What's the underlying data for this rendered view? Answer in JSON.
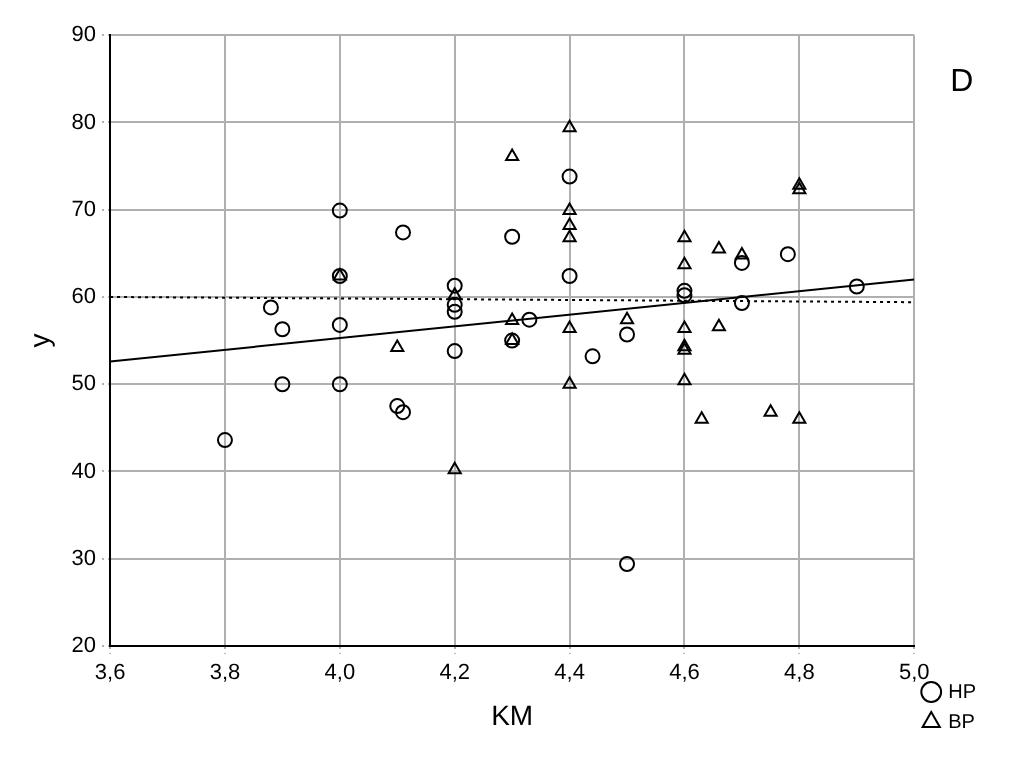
{
  "chart_data": {
    "type": "scatter",
    "xlabel": "KM",
    "ylabel": "y",
    "annotations": [
      "D"
    ],
    "xlim": [
      3.6,
      5.0
    ],
    "xticks": [
      {
        "value": 3.6,
        "label": "3,6"
      },
      {
        "value": 3.8,
        "label": "3,8"
      },
      {
        "value": 4.0,
        "label": "4,0"
      },
      {
        "value": 4.2,
        "label": "4,2"
      },
      {
        "value": 4.4,
        "label": "4,4"
      },
      {
        "value": 4.6,
        "label": "4,6"
      },
      {
        "value": 4.8,
        "label": "4,8"
      },
      {
        "value": 5.0,
        "label": "5,0"
      }
    ],
    "ylim": [
      20,
      90
    ],
    "yticks": [
      20,
      30,
      40,
      50,
      60,
      70,
      80,
      90
    ],
    "grid": true,
    "legend": "bottom right",
    "series": [
      {
        "name": "HP",
        "color": "#000000",
        "marker": "circle",
        "x": [
          3.8,
          3.88,
          3.9,
          3.9,
          4.0,
          4.0,
          4.0,
          4.0,
          4.1,
          4.11,
          4.11,
          4.2,
          4.2,
          4.2,
          4.2,
          4.3,
          4.3,
          4.33,
          4.4,
          4.4,
          4.44,
          4.5,
          4.5,
          4.6,
          4.6,
          4.7,
          4.7,
          4.78,
          4.9
        ],
        "values": [
          43.6,
          58.8,
          56.3,
          50,
          69.9,
          62.4,
          56.8,
          50,
          47.5,
          46.8,
          67.4,
          61.3,
          59.1,
          58.3,
          53.8,
          66.9,
          55.0,
          57.4,
          73.8,
          62.4,
          53.2,
          55.7,
          29.4,
          60.7,
          60.2,
          63.9,
          59.3,
          64.9,
          61.2
        ]
      },
      {
        "name": "BP",
        "color": "#000000",
        "marker": "triangle",
        "x": [
          4.0,
          4.1,
          4.2,
          4.2,
          4.3,
          4.3,
          4.3,
          4.4,
          4.4,
          4.4,
          4.4,
          4.4,
          4.4,
          4.5,
          4.6,
          4.6,
          4.6,
          4.6,
          4.6,
          4.6,
          4.63,
          4.66,
          4.66,
          4.7,
          4.75,
          4.8,
          4.8,
          4.8
        ],
        "values": [
          62.4,
          54.2,
          60.2,
          40.2,
          76.1,
          57.3,
          55.0,
          79.4,
          69.9,
          68.2,
          66.8,
          56.4,
          50.0,
          57.4,
          66.8,
          63.7,
          56.4,
          54.3,
          53.9,
          50.4,
          46.0,
          65.5,
          56.6,
          64.8,
          46.8,
          72.8,
          72.3,
          46.0
        ]
      },
      {
        "type": "line",
        "color": "#000000",
        "line_style": "solid",
        "marker": "none",
        "x": [
          3.6,
          5.0
        ],
        "values": [
          52.6,
          62.0
        ]
      },
      {
        "type": "line",
        "color": "#000000",
        "line_style": "dotted",
        "marker": "none",
        "x": [
          3.6,
          5.0
        ],
        "values": [
          60.0,
          59.4
        ]
      }
    ]
  }
}
